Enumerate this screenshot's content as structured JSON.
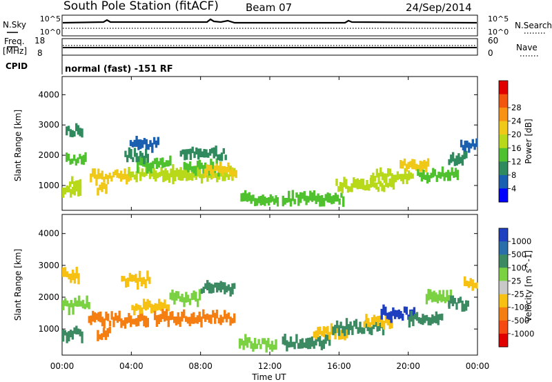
{
  "header": {
    "station": "South Pole Station (fitACF)",
    "beam": "Beam 07",
    "date": "24/Sep/2014"
  },
  "noise_panel": {
    "left_label": "N.Sky",
    "right_label": "N.Search",
    "ticks": [
      "10^5",
      "10^0"
    ]
  },
  "freq_panel": {
    "left_label_1": "Freq.",
    "left_label_2": "[MHz]",
    "left_ticks": [
      "18",
      "8"
    ],
    "right_label": "Nave",
    "right_ticks": [
      "60",
      "0"
    ]
  },
  "cpid": {
    "label": "CPID",
    "value": "normal (fast) -151 RF"
  },
  "x_axis": {
    "label": "Time UT",
    "ticks": [
      "00:00",
      "04:00",
      "08:00",
      "12:00",
      "16:00",
      "20:00",
      "00:00"
    ]
  },
  "chart_data": [
    {
      "type": "heatmap",
      "title": "",
      "xlabel": "Time UT",
      "ylabel": "Slant Range [km]",
      "ylim": [
        180,
        4600
      ],
      "y_ticks": [
        "1000",
        "2000",
        "3000",
        "4000"
      ],
      "colorbar": {
        "label": "Power [dB]",
        "ticks": [
          "4",
          "8",
          "12",
          "16",
          "20",
          "24",
          "28"
        ],
        "colors": [
          "#0000ff",
          "#1a5fb0",
          "#2f8a5e",
          "#4fc12f",
          "#b7d91a",
          "#f0c817",
          "#f79215",
          "#f2560e",
          "#e00000"
        ]
      },
      "cells": [
        [
          0.0,
          1.1,
          830,
          19
        ],
        [
          0.4,
          1.1,
          1100,
          16
        ],
        [
          0.2,
          1.4,
          1870,
          14
        ],
        [
          0.2,
          1.2,
          2800,
          9
        ],
        [
          1.6,
          4.0,
          1300,
          22
        ],
        [
          2.0,
          2.6,
          880,
          20
        ],
        [
          3.8,
          8.0,
          1400,
          18
        ],
        [
          4.3,
          6.3,
          1700,
          13
        ],
        [
          3.6,
          5.0,
          1970,
          10
        ],
        [
          3.9,
          5.6,
          2350,
          7
        ],
        [
          5.8,
          10.0,
          1350,
          19
        ],
        [
          7.0,
          9.2,
          1600,
          14
        ],
        [
          6.8,
          9.5,
          2050,
          9
        ],
        [
          8.2,
          10.1,
          1500,
          22
        ],
        [
          10.3,
          12.1,
          570,
          13
        ],
        [
          12.0,
          12.5,
          470,
          14
        ],
        [
          12.7,
          16.3,
          560,
          15
        ],
        [
          15.8,
          19.2,
          1000,
          17
        ],
        [
          17.8,
          20.3,
          1330,
          19
        ],
        [
          19.5,
          21.2,
          1650,
          21
        ],
        [
          20.5,
          22.9,
          1350,
          13
        ],
        [
          22.3,
          23.4,
          1900,
          8
        ],
        [
          23.0,
          24.0,
          2300,
          6
        ]
      ]
    },
    {
      "type": "heatmap",
      "title": "",
      "xlabel": "Time UT",
      "ylabel": "Slant Range [km]",
      "ylim": [
        180,
        4600
      ],
      "y_ticks": [
        "1000",
        "2000",
        "3000",
        "4000"
      ],
      "colorbar": {
        "label": "Velocity [m s^-1]",
        "ticks": [
          "1000",
          "500",
          "100",
          "25",
          "-25",
          "-100",
          "-500",
          "-1000"
        ],
        "colors": [
          "#1e3fc0",
          "#2a6faa",
          "#3c8a62",
          "#7ad142",
          "#c8c8c8",
          "#f6c112",
          "#f57e12",
          "#f54a12",
          "#e00000"
        ]
      },
      "cells": [
        [
          0.0,
          1.2,
          850,
          100
        ],
        [
          0.0,
          1.6,
          1750,
          25
        ],
        [
          0.0,
          1.0,
          2700,
          -100
        ],
        [
          1.5,
          5.0,
          1300,
          -500
        ],
        [
          2.0,
          2.8,
          850,
          -200
        ],
        [
          4.0,
          6.2,
          1700,
          -100
        ],
        [
          3.4,
          5.1,
          2550,
          -100
        ],
        [
          5.3,
          10.0,
          1350,
          -500
        ],
        [
          6.2,
          8.0,
          1950,
          25
        ],
        [
          8.0,
          10.0,
          2300,
          300
        ],
        [
          10.2,
          12.4,
          550,
          80
        ],
        [
          12.7,
          15.5,
          600,
          100
        ],
        [
          14.5,
          16.5,
          900,
          -100
        ],
        [
          15.6,
          18.6,
          1050,
          120
        ],
        [
          17.4,
          19.1,
          1200,
          -100
        ],
        [
          18.4,
          20.5,
          1500,
          1000
        ],
        [
          20.0,
          22.0,
          1300,
          100
        ],
        [
          21.0,
          22.5,
          2000,
          25
        ],
        [
          22.3,
          23.5,
          1800,
          300
        ],
        [
          23.2,
          24.0,
          2400,
          -100
        ]
      ]
    }
  ]
}
